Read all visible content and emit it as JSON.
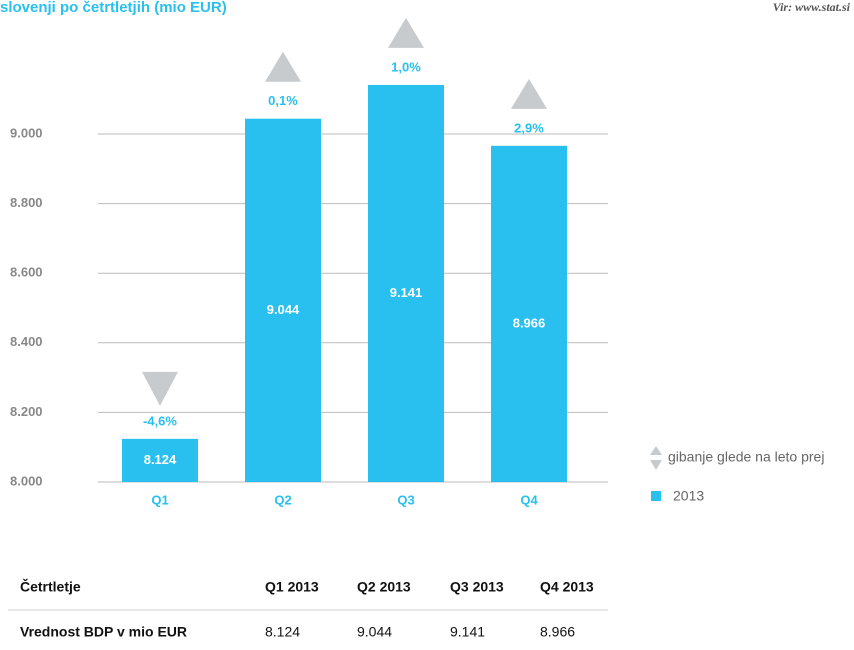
{
  "chart_data": {
    "type": "bar",
    "title": "slovenji po četrtletjih (mio EUR)",
    "source": "Vir: www.stat.si",
    "categories": [
      "Q1",
      "Q2",
      "Q3",
      "Q4"
    ],
    "series": [
      {
        "name": "2013",
        "color": "#29c0ef",
        "values": [
          8124,
          9044,
          9141,
          8966
        ],
        "value_labels": [
          "8.124",
          "9.044",
          "9.141",
          "8.966"
        ]
      }
    ],
    "changes": [
      -4.6,
      0.1,
      1.0,
      2.9
    ],
    "change_labels": [
      "-4,6%",
      "0,1%",
      "1,0%",
      "2,9%"
    ],
    "change_legend": "gibanje glede na leto prej",
    "change_color": "#c8cbce",
    "ylim": [
      8000,
      9400
    ],
    "yticks": [
      {
        "value": 8000,
        "label": "8.000"
      },
      {
        "value": 8200,
        "label": "8.200"
      },
      {
        "value": 8400,
        "label": "8.400"
      },
      {
        "value": 8600,
        "label": "8.600"
      },
      {
        "value": 8800,
        "label": "8.800"
      },
      {
        "value": 9000,
        "label": "9.000"
      }
    ],
    "grid": true
  },
  "table": {
    "header": [
      "Četrtletje",
      "Q1 2013",
      "Q2 2013",
      "Q3 2013",
      "Q4 2013"
    ],
    "rows": [
      [
        "Vrednost BDP v mio EUR",
        "8.124",
        "9.044",
        "9.141",
        "8.966"
      ]
    ]
  }
}
